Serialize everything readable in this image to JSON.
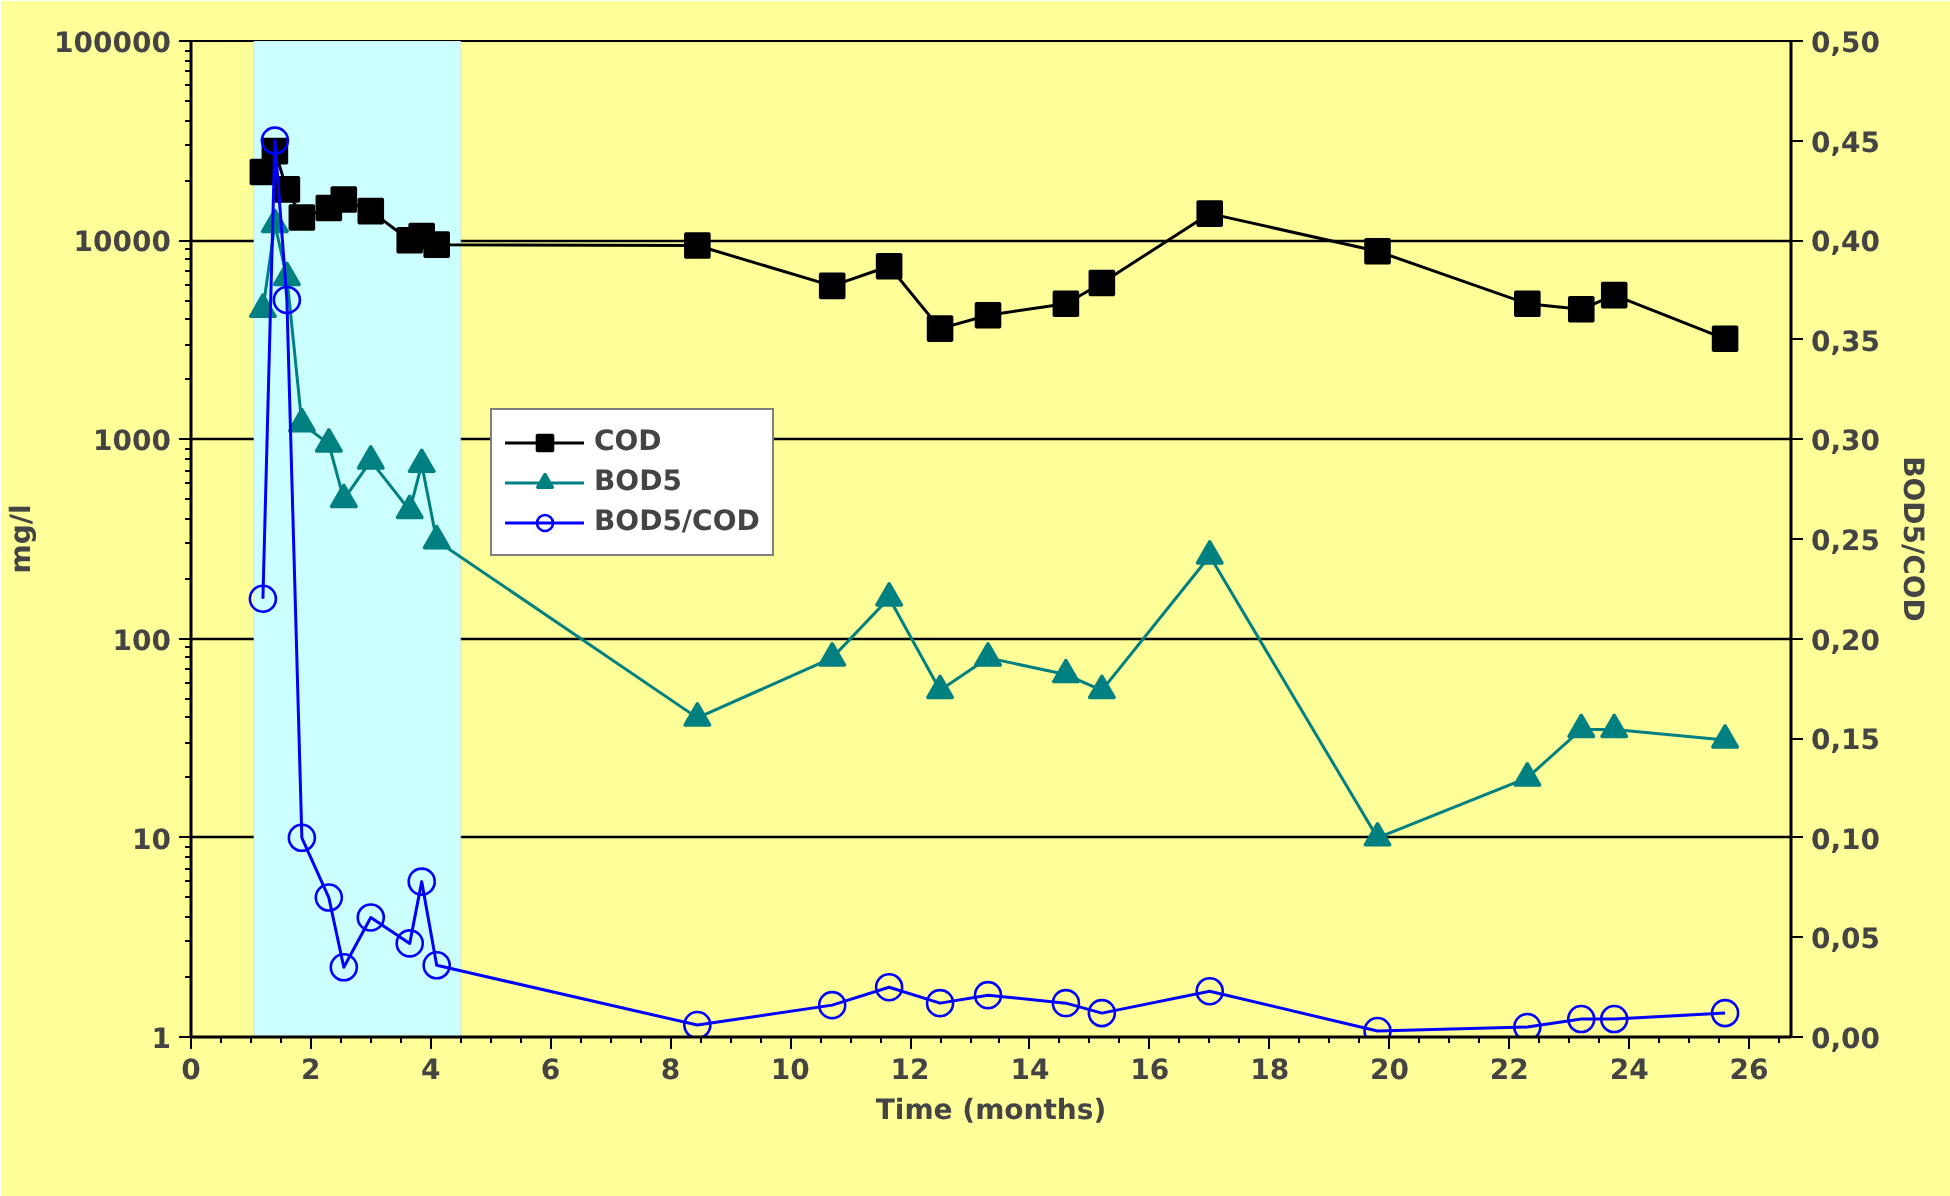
{
  "chart_data": {
    "type": "line",
    "xlabel": "Time (months)",
    "ylabel": "mg/l",
    "y2label": "BOD5/COD",
    "x": [
      1.2,
      1.4,
      1.6,
      1.85,
      2.3,
      2.55,
      3.0,
      3.65,
      3.85,
      4.1,
      8.45,
      10.7,
      11.65,
      12.5,
      13.3,
      14.6,
      15.2,
      17.0,
      19.8,
      22.3,
      23.2,
      23.75,
      25.6
    ],
    "series": [
      {
        "name": "COD",
        "color": "#000000",
        "marker": "square",
        "values": [
          22000,
          28000,
          18000,
          13000,
          14500,
          16000,
          14000,
          10000,
          10500,
          9500,
          9400,
          5900,
          7400,
          3600,
          4200,
          4800,
          6100,
          13600,
          8800,
          4800,
          4500,
          5300,
          3200
        ]
      },
      {
        "name": "BOD5",
        "color": "#008080",
        "marker": "triangle",
        "values": [
          4500,
          12000,
          6500,
          1200,
          950,
          500,
          780,
          440,
          750,
          310,
          40,
          80,
          160,
          55,
          80,
          66,
          55,
          260,
          10,
          20,
          35,
          35,
          31
        ]
      },
      {
        "name": "BOD5/COD",
        "color": "#0000ff",
        "marker": "circle",
        "axis": "y2",
        "values": [
          0.22,
          0.45,
          0.37,
          0.1,
          0.07,
          0.035,
          0.06,
          0.047,
          0.078,
          0.036,
          0.006,
          0.016,
          0.025,
          0.017,
          0.021,
          0.017,
          0.012,
          0.023,
          0.003,
          0.005,
          0.009,
          0.009,
          0.012
        ]
      }
    ],
    "log": "y",
    "xlim": [
      0,
      26.7
    ],
    "xticks": [
      0,
      2,
      4,
      6,
      8,
      10,
      12,
      14,
      16,
      18,
      20,
      22,
      24,
      26
    ],
    "ylim": [
      1,
      100000
    ],
    "yticks": [
      1,
      10,
      100,
      1000,
      10000,
      100000
    ],
    "y2lim": [
      0,
      0.5
    ],
    "y2ticks": [
      {
        "value": 0,
        "label": "0,00"
      },
      {
        "value": 0.05,
        "label": "0,05"
      },
      {
        "value": 0.1,
        "label": "0,10"
      },
      {
        "value": 0.15,
        "label": "0,15"
      },
      {
        "value": 0.2,
        "label": "0,20"
      },
      {
        "value": 0.25,
        "label": "0,25"
      },
      {
        "value": 0.3,
        "label": "0,30"
      },
      {
        "value": 0.35,
        "label": "0,35"
      },
      {
        "value": 0.4,
        "label": "0,40"
      },
      {
        "value": 0.45,
        "label": "0,45"
      },
      {
        "value": 0.5,
        "label": "0,50"
      }
    ],
    "bands": [
      {
        "axis": "x",
        "from": 1.05,
        "to": 4.5,
        "color": "#ccffff"
      }
    ],
    "grid": "y",
    "legend": "top left",
    "line_style": "solid"
  }
}
